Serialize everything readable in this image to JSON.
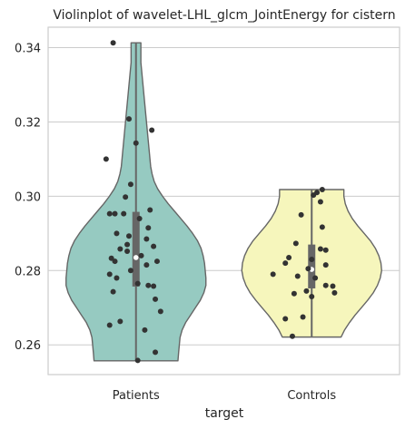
{
  "chart_data": {
    "type": "violin",
    "title": "Violinplot of wavelet-LHL_glcm_JointEnergy for cistern",
    "xlabel": "target",
    "ylabel": "",
    "ylim": [
      0.252,
      0.3455
    ],
    "yticks": [
      0.26,
      0.28,
      0.3,
      0.32,
      0.34
    ],
    "ytick_labels": [
      "0.26",
      "0.28",
      "0.30",
      "0.32",
      "0.34"
    ],
    "grid": true,
    "categories": [
      "Patients",
      "Controls"
    ],
    "colors": {
      "Patients": "#96CAC1",
      "Controls": "#F6F6BC",
      "outline": "#666666",
      "points": "#333333",
      "grid": "#cccccc"
    },
    "violins": [
      {
        "name": "Patients",
        "min": 0.2557,
        "max": 0.3413,
        "q1": 0.2757,
        "median": 0.2835,
        "q3": 0.2958,
        "profile": [
          [
            0.2557,
            0.6
          ],
          [
            0.258,
            0.61
          ],
          [
            0.26,
            0.62
          ],
          [
            0.262,
            0.63
          ],
          [
            0.264,
            0.66
          ],
          [
            0.266,
            0.71
          ],
          [
            0.268,
            0.78
          ],
          [
            0.27,
            0.85
          ],
          [
            0.272,
            0.92
          ],
          [
            0.274,
            0.97
          ],
          [
            0.276,
            1.0
          ],
          [
            0.278,
            1.0
          ],
          [
            0.28,
            0.99
          ],
          [
            0.282,
            0.98
          ],
          [
            0.284,
            0.96
          ],
          [
            0.286,
            0.93
          ],
          [
            0.288,
            0.88
          ],
          [
            0.29,
            0.81
          ],
          [
            0.292,
            0.73
          ],
          [
            0.294,
            0.64
          ],
          [
            0.296,
            0.55
          ],
          [
            0.298,
            0.46
          ],
          [
            0.3,
            0.38
          ],
          [
            0.302,
            0.31
          ],
          [
            0.304,
            0.26
          ],
          [
            0.306,
            0.23
          ],
          [
            0.308,
            0.21
          ],
          [
            0.31,
            0.2
          ],
          [
            0.312,
            0.19
          ],
          [
            0.314,
            0.18
          ],
          [
            0.316,
            0.17
          ],
          [
            0.318,
            0.16
          ],
          [
            0.32,
            0.15
          ],
          [
            0.322,
            0.14
          ],
          [
            0.324,
            0.13
          ],
          [
            0.326,
            0.12
          ],
          [
            0.328,
            0.11
          ],
          [
            0.33,
            0.1
          ],
          [
            0.332,
            0.09
          ],
          [
            0.334,
            0.08
          ],
          [
            0.336,
            0.07
          ],
          [
            0.338,
            0.07
          ],
          [
            0.34,
            0.07
          ],
          [
            0.3413,
            0.07
          ]
        ],
        "points": [
          [
            -0.13,
            0.3413
          ],
          [
            -0.04,
            0.3208
          ],
          [
            0.09,
            0.3178
          ],
          [
            0.0,
            0.3143
          ],
          [
            -0.17,
            0.31
          ],
          [
            -0.03,
            0.3032
          ],
          [
            -0.06,
            0.2998
          ],
          [
            0.08,
            0.2963
          ],
          [
            -0.15,
            0.2953
          ],
          [
            -0.12,
            0.2953
          ],
          [
            -0.07,
            0.2953
          ],
          [
            0.02,
            0.294
          ],
          [
            0.07,
            0.2915
          ],
          [
            -0.11,
            0.29
          ],
          [
            -0.04,
            0.2893
          ],
          [
            0.06,
            0.2885
          ],
          [
            -0.05,
            0.287
          ],
          [
            0.1,
            0.2865
          ],
          [
            -0.09,
            0.2858
          ],
          [
            -0.05,
            0.2852
          ],
          [
            0.03,
            0.284
          ],
          [
            -0.14,
            0.2833
          ],
          [
            -0.12,
            0.2825
          ],
          [
            0.12,
            0.2825
          ],
          [
            0.06,
            0.2815
          ],
          [
            -0.03,
            0.28
          ],
          [
            -0.15,
            0.279
          ],
          [
            -0.11,
            0.278
          ],
          [
            0.01,
            0.2765
          ],
          [
            0.07,
            0.276
          ],
          [
            0.1,
            0.2758
          ],
          [
            -0.13,
            0.2743
          ],
          [
            0.11,
            0.2723
          ],
          [
            0.14,
            0.269
          ],
          [
            -0.09,
            0.2663
          ],
          [
            -0.15,
            0.2653
          ],
          [
            0.05,
            0.264
          ],
          [
            0.11,
            0.258
          ],
          [
            0.01,
            0.2558
          ]
        ]
      },
      {
        "name": "Controls",
        "min": 0.2621,
        "max": 0.3018,
        "q1": 0.2752,
        "median": 0.2803,
        "q3": 0.287,
        "profile": [
          [
            0.2621,
            0.42
          ],
          [
            0.264,
            0.47
          ],
          [
            0.266,
            0.54
          ],
          [
            0.268,
            0.62
          ],
          [
            0.27,
            0.71
          ],
          [
            0.272,
            0.8
          ],
          [
            0.274,
            0.88
          ],
          [
            0.276,
            0.94
          ],
          [
            0.278,
            0.98
          ],
          [
            0.28,
            1.0
          ],
          [
            0.282,
            0.99
          ],
          [
            0.284,
            0.96
          ],
          [
            0.286,
            0.91
          ],
          [
            0.288,
            0.84
          ],
          [
            0.29,
            0.75
          ],
          [
            0.292,
            0.66
          ],
          [
            0.294,
            0.58
          ],
          [
            0.296,
            0.52
          ],
          [
            0.298,
            0.48
          ],
          [
            0.3,
            0.46
          ],
          [
            0.3018,
            0.46
          ]
        ],
        "points": [
          [
            0.06,
            0.3018
          ],
          [
            0.03,
            0.301
          ],
          [
            0.01,
            0.3003
          ],
          [
            0.05,
            0.2985
          ],
          [
            -0.06,
            0.295
          ],
          [
            0.06,
            0.2917
          ],
          [
            -0.09,
            0.2873
          ],
          [
            0.05,
            0.2858
          ],
          [
            0.08,
            0.2855
          ],
          [
            -0.13,
            0.2835
          ],
          [
            0.0,
            0.283
          ],
          [
            -0.15,
            0.282
          ],
          [
            0.08,
            0.2815
          ],
          [
            -0.02,
            0.2805
          ],
          [
            -0.22,
            0.279
          ],
          [
            -0.08,
            0.2785
          ],
          [
            0.02,
            0.278
          ],
          [
            0.08,
            0.276
          ],
          [
            0.12,
            0.2758
          ],
          [
            -0.03,
            0.2745
          ],
          [
            0.13,
            0.274
          ],
          [
            -0.1,
            0.2738
          ],
          [
            0.0,
            0.273
          ],
          [
            -0.15,
            0.267
          ],
          [
            -0.05,
            0.2675
          ],
          [
            -0.11,
            0.2623
          ]
        ]
      }
    ]
  }
}
